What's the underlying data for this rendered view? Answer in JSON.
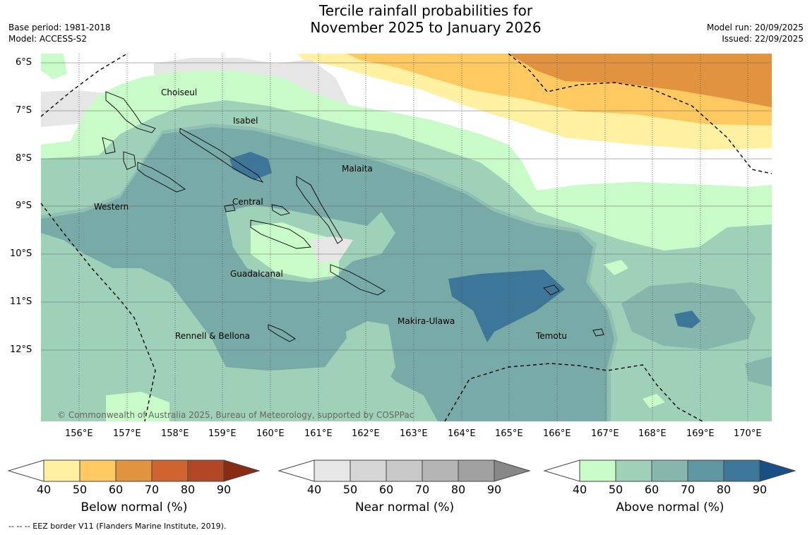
{
  "header": {
    "title_line1": "Tercile rainfall probabilities for",
    "title_line2": "November 2025 to January 2026",
    "base_period": "Base period: 1981-2018",
    "model": "Model: ACCESS-S2",
    "model_run": "Model run: 20/09/2025",
    "issued": "Issued: 22/09/2025"
  },
  "map": {
    "lat_labels": [
      "6°S",
      "7°S",
      "8°S",
      "9°S",
      "10°S",
      "11°S",
      "12°S"
    ],
    "lon_labels": [
      "156°E",
      "157°E",
      "158°E",
      "159°E",
      "160°E",
      "161°E",
      "162°E",
      "163°E",
      "164°E",
      "165°E",
      "166°E",
      "167°E",
      "168°E",
      "169°E",
      "170°E"
    ],
    "regions": [
      "Choiseul",
      "Isabel",
      "Malaita",
      "Western",
      "Central",
      "Guadalcanal",
      "Makira-Ulawa",
      "Temotu",
      "Rennell & Bellona"
    ],
    "copyright": "© Commonwealth of Australia 2025, Bureau of Meteorology, supported by COSPPac",
    "colors": {
      "above": [
        "#c9fbc8",
        "#9fd0b8",
        "#87b6ac",
        "#5e96a2",
        "#3c7799",
        "#1a4f86"
      ],
      "below": [
        "#fff0a2",
        "#ffc962",
        "#e2933f",
        "#d06430",
        "#b14724",
        "#8a2b14"
      ],
      "near": [
        "#e6e6e6",
        "#d6d6d6",
        "#c8c8c8",
        "#b5b5b5",
        "#a0a0a0",
        "#888888"
      ]
    }
  },
  "colorbars": [
    {
      "title": "Below normal (%)",
      "ticks": [
        "40",
        "50",
        "60",
        "70",
        "80",
        "90"
      ]
    },
    {
      "title": "Near normal (%)",
      "ticks": [
        "40",
        "50",
        "60",
        "70",
        "80",
        "90"
      ]
    },
    {
      "title": "Above normal (%)",
      "ticks": [
        "40",
        "50",
        "60",
        "70",
        "80",
        "90"
      ]
    }
  ],
  "footer": "--  --  -- EEZ border V11 (Flanders Marine Institute, 2019)."
}
